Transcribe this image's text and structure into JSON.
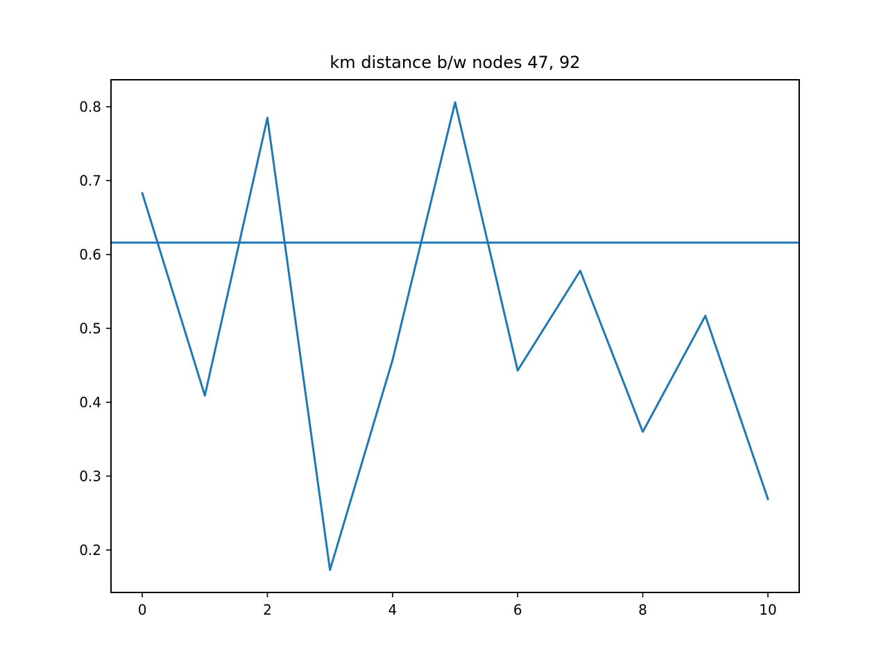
{
  "chart_data": {
    "type": "line",
    "title": "km distance b/w nodes 47, 92",
    "xlabel": "",
    "ylabel": "",
    "x": [
      0,
      1,
      2,
      3,
      4,
      5,
      6,
      7,
      8,
      9,
      10
    ],
    "series": [
      {
        "values": [
          0.683,
          0.409,
          0.785,
          0.173,
          0.457,
          0.806,
          0.443,
          0.578,
          0.36,
          0.517,
          0.269
        ],
        "color": "#1f77b4"
      }
    ],
    "reference_lines": [
      {
        "orientation": "horizontal",
        "y": 0.616,
        "color": "#1f77b4"
      }
    ],
    "xlim": [
      -0.5,
      10.5
    ],
    "ylim": [
      0.1425,
      0.8365
    ],
    "x_ticks": [
      0,
      2,
      4,
      6,
      8,
      10
    ],
    "x_tick_labels": [
      "0",
      "2",
      "4",
      "6",
      "8",
      "10"
    ],
    "y_ticks": [
      0.2,
      0.3,
      0.4,
      0.5,
      0.6,
      0.7,
      0.8
    ],
    "y_tick_labels": [
      "0.2",
      "0.3",
      "0.4",
      "0.5",
      "0.6",
      "0.7",
      "0.8"
    ],
    "grid": false,
    "legend": "none"
  }
}
